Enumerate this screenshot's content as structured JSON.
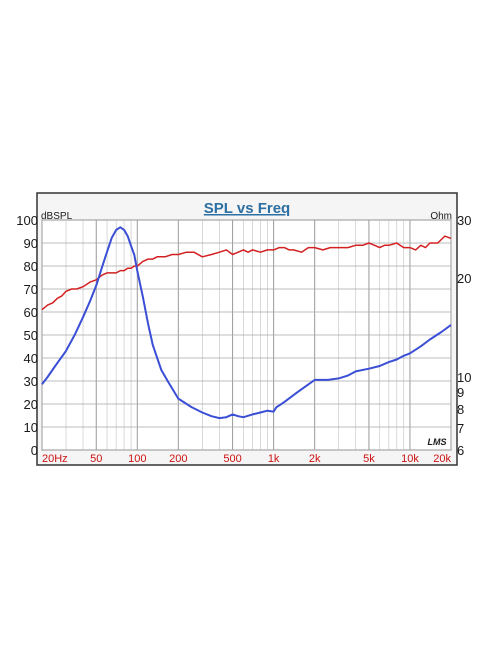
{
  "chart_data": {
    "type": "line",
    "title": "SPL vs Freq",
    "x_scale": "log",
    "xlim": [
      20,
      20000
    ],
    "x_ticks": [
      20,
      50,
      100,
      200,
      500,
      1000,
      2000,
      5000,
      10000,
      20000
    ],
    "x_tick_labels": [
      "20Hz",
      "50",
      "100",
      "200",
      "500",
      "1k",
      "2k",
      "5k",
      "10k",
      "20k"
    ],
    "left_axis": {
      "unit": "dBSPL",
      "range": [
        0,
        100
      ],
      "ticks": [
        0,
        10,
        20,
        30,
        40,
        50,
        60,
        70,
        80,
        90,
        100
      ],
      "tick_labels": [
        "0",
        "10",
        "20",
        "30",
        "40",
        "50",
        "60",
        "70",
        "80",
        "90",
        "100"
      ]
    },
    "right_axis": {
      "unit": "Ohm",
      "scale": "log",
      "range": [
        6,
        30
      ],
      "ticks": [
        6,
        7,
        8,
        9,
        10,
        20,
        30
      ],
      "tick_labels": [
        "6",
        "7",
        "8",
        "9",
        "10",
        "20",
        "30"
      ]
    },
    "grid": true,
    "watermark": "LMS",
    "series": [
      {
        "axis": "left",
        "color": "#d42020",
        "x": [
          20,
          22,
          24,
          26,
          28,
          30,
          33,
          36,
          40,
          45,
          50,
          55,
          60,
          65,
          70,
          75,
          80,
          85,
          90,
          95,
          100,
          110,
          120,
          130,
          140,
          160,
          180,
          200,
          230,
          260,
          300,
          350,
          400,
          450,
          500,
          550,
          600,
          650,
          700,
          800,
          900,
          1000,
          1100,
          1200,
          1300,
          1400,
          1600,
          1800,
          2000,
          2300,
          2600,
          3000,
          3500,
          4000,
          4500,
          5000,
          5500,
          6000,
          6500,
          7000,
          8000,
          9000,
          10000,
          11000,
          12000,
          13000,
          14000,
          16000,
          18000,
          20000
        ],
        "values": [
          61,
          63,
          64,
          66,
          67,
          69,
          70,
          70,
          71,
          73,
          74,
          76,
          77,
          77,
          77,
          78,
          78,
          79,
          79,
          80,
          80,
          82,
          83,
          83,
          84,
          84,
          85,
          85,
          86,
          86,
          84,
          85,
          86,
          87,
          85,
          86,
          87,
          86,
          87,
          86,
          87,
          87,
          88,
          88,
          87,
          87,
          86,
          88,
          88,
          87,
          88,
          88,
          88,
          89,
          89,
          90,
          89,
          88,
          89,
          89,
          90,
          88,
          88,
          87,
          89,
          88,
          90,
          90,
          93,
          92
        ]
      },
      {
        "axis": "right",
        "color": "#3b4fd6",
        "x": [
          20,
          22,
          25,
          30,
          35,
          40,
          45,
          50,
          55,
          60,
          65,
          70,
          75,
          80,
          85,
          90,
          95,
          100,
          110,
          120,
          130,
          150,
          170,
          200,
          250,
          300,
          350,
          400,
          450,
          500,
          550,
          600,
          700,
          800,
          900,
          1000,
          1050,
          1100,
          1200,
          1500,
          2000,
          2500,
          3000,
          3500,
          4000,
          5000,
          6000,
          7000,
          8000,
          9000,
          10000,
          12000,
          14000,
          17000,
          20000
        ],
        "values": [
          9.5,
          10.0,
          10.8,
          12.0,
          13.5,
          15.2,
          17.0,
          19.0,
          21.5,
          24.0,
          26.5,
          28.0,
          28.5,
          28.0,
          26.8,
          25.0,
          23.5,
          21.0,
          17.5,
          14.5,
          12.5,
          10.5,
          9.6,
          8.6,
          8.1,
          7.8,
          7.6,
          7.5,
          7.55,
          7.7,
          7.6,
          7.55,
          7.7,
          7.8,
          7.9,
          7.85,
          8.1,
          8.2,
          8.4,
          9.0,
          9.8,
          9.8,
          9.9,
          10.1,
          10.4,
          10.6,
          10.8,
          11.1,
          11.3,
          11.6,
          11.8,
          12.4,
          13.0,
          13.7,
          14.4
        ]
      }
    ]
  }
}
